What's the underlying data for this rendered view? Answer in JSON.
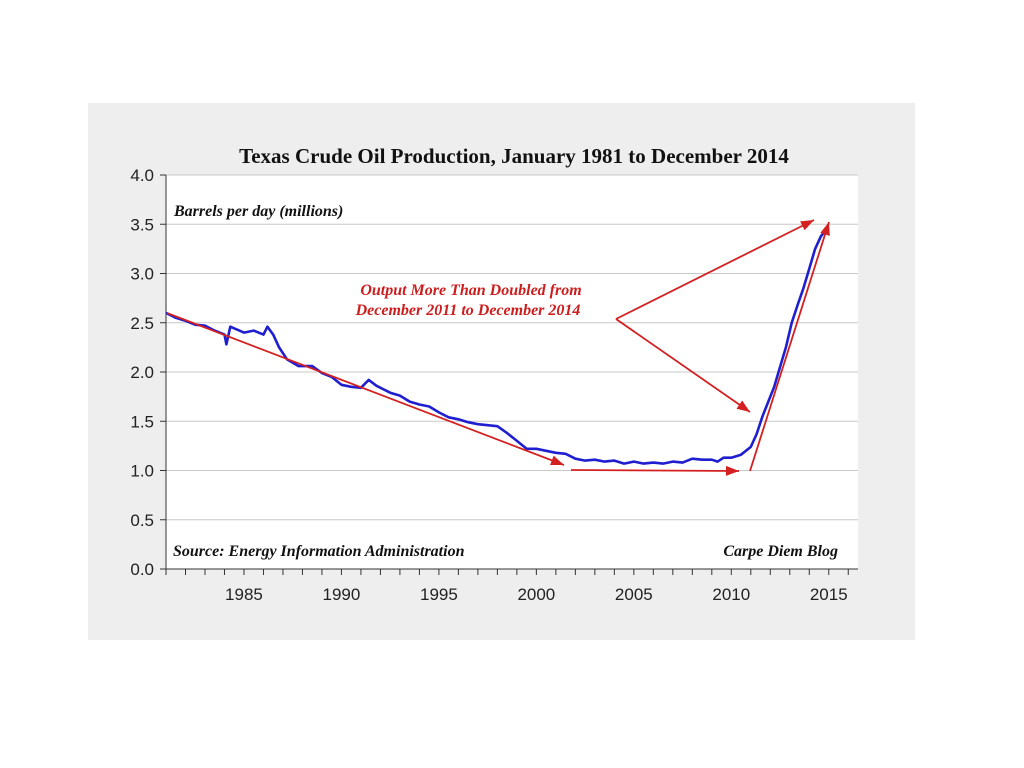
{
  "chart_data": {
    "type": "line",
    "title": "Texas Crude Oil Production, January 1981 to December 2014",
    "ylabel": "Barrels per day (millions)",
    "xlabel": "",
    "xlim": [
      1981,
      2016.5
    ],
    "ylim": [
      0,
      4.0
    ],
    "yticks": [
      "0.0",
      "0.5",
      "1.0",
      "1.5",
      "2.0",
      "2.5",
      "3.0",
      "3.5",
      "4.0"
    ],
    "xticks": [
      "1985",
      "1990",
      "1995",
      "2000",
      "2005",
      "2010",
      "2015"
    ],
    "source": "Source: Energy Information Administration",
    "credit": "Carpe Diem Blog",
    "annotation_line1": "Output More Than Doubled from",
    "annotation_line2": "December 2011 to December 2014",
    "colors": {
      "series": "#1f1fd0",
      "annotation": "#d42020",
      "grid": "#c8c8c8"
    },
    "series": [
      {
        "name": "Texas crude oil production",
        "x": [
          1981.0,
          1981.5,
          1982.0,
          1982.5,
          1983.0,
          1983.5,
          1984.0,
          1984.1,
          1984.3,
          1985.0,
          1985.5,
          1986.0,
          1986.2,
          1986.5,
          1986.8,
          1987.2,
          1987.8,
          1988.5,
          1989.0,
          1989.5,
          1990.0,
          1990.5,
          1991.0,
          1991.4,
          1991.8,
          1992.5,
          1993.0,
          1993.5,
          1994.0,
          1994.5,
          1995.0,
          1995.5,
          1996.0,
          1996.5,
          1997.0,
          1997.5,
          1998.0,
          1998.5,
          1999.0,
          1999.5,
          2000.0,
          2000.5,
          2001.0,
          2001.5,
          2002.0,
          2002.5,
          2003.0,
          2003.5,
          2004.0,
          2004.5,
          2005.0,
          2005.5,
          2006.0,
          2006.5,
          2007.0,
          2007.5,
          2008.0,
          2008.5,
          2009.0,
          2009.3,
          2009.6,
          2010.0,
          2010.5,
          2011.0,
          2011.3,
          2011.6,
          2011.9,
          2012.2,
          2012.5,
          2012.8,
          2013.1,
          2013.4,
          2013.7,
          2014.0,
          2014.3,
          2014.6,
          2014.9
        ],
        "values": [
          2.6,
          2.55,
          2.52,
          2.48,
          2.47,
          2.42,
          2.38,
          2.28,
          2.46,
          2.4,
          2.42,
          2.38,
          2.46,
          2.38,
          2.25,
          2.13,
          2.06,
          2.06,
          1.99,
          1.95,
          1.87,
          1.85,
          1.84,
          1.92,
          1.86,
          1.79,
          1.76,
          1.7,
          1.67,
          1.65,
          1.59,
          1.54,
          1.52,
          1.49,
          1.47,
          1.46,
          1.45,
          1.38,
          1.3,
          1.22,
          1.22,
          1.2,
          1.18,
          1.17,
          1.12,
          1.1,
          1.11,
          1.09,
          1.1,
          1.07,
          1.09,
          1.07,
          1.08,
          1.07,
          1.09,
          1.08,
          1.12,
          1.11,
          1.11,
          1.09,
          1.13,
          1.13,
          1.16,
          1.24,
          1.37,
          1.55,
          1.7,
          1.85,
          2.05,
          2.25,
          2.5,
          2.68,
          2.85,
          3.05,
          3.25,
          3.38,
          3.45
        ]
      }
    ]
  }
}
